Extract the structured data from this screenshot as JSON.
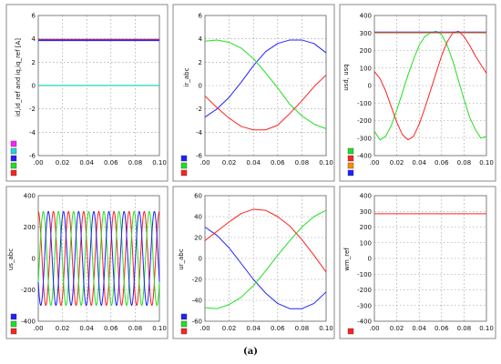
{
  "caption": "(a)",
  "colors": {
    "red": "#ff2020",
    "green": "#20e020",
    "blue": "#2020ff",
    "cyan": "#20d8d8",
    "magenta": "#ff20ff",
    "orange": "#ff8c00",
    "purple": "#7a20a0"
  },
  "chart_data": [
    {
      "type": "line",
      "ylabel": "id,id_ref and iq,iq_ref [A]",
      "xlim": [
        0,
        0.1
      ],
      "ylim": [
        -6,
        6
      ],
      "xticks": [
        ".00",
        "0.02",
        "0.04",
        "0.06",
        "0.08",
        "0.10"
      ],
      "yticks": [
        "6",
        "4",
        "2",
        "0",
        "-2",
        "-4",
        "-6"
      ],
      "grid": true,
      "legend_swatches": [
        "#ff20ff",
        "#20d8d8",
        "#2020ff",
        "#20e020",
        "#ff2020"
      ],
      "series": [
        {
          "color": "#ff2020",
          "x": [
            0,
            0.1
          ],
          "y": [
            3.9,
            3.9
          ]
        },
        {
          "color": "#2020ff",
          "x": [
            0,
            0.1
          ],
          "y": [
            3.85,
            3.85
          ]
        },
        {
          "color": "#7a20a0",
          "x": [
            0,
            0.1
          ],
          "y": [
            3.95,
            3.95
          ]
        },
        {
          "color": "#20e020",
          "x": [
            0,
            0.1
          ],
          "y": [
            0.0,
            0.0
          ]
        },
        {
          "color": "#20d8d8",
          "x": [
            0,
            0.1
          ],
          "y": [
            0.02,
            0.02
          ]
        }
      ]
    },
    {
      "type": "line",
      "ylabel": "ir_abc",
      "xlim": [
        0,
        0.1
      ],
      "ylim": [
        -6,
        6
      ],
      "xticks": [
        ".00",
        "0.02",
        "0.04",
        "0.06",
        "0.08",
        "0.10"
      ],
      "yticks": [
        "6",
        "4",
        "2",
        "0",
        "-2",
        "-4",
        "-6"
      ],
      "grid": true,
      "legend_swatches": [
        "#2020ff",
        "#20e020",
        "#ff2020"
      ],
      "series": [
        {
          "color": "#2020ff",
          "x": [
            0,
            0.01,
            0.02,
            0.03,
            0.04,
            0.05,
            0.06,
            0.07,
            0.08,
            0.09,
            0.1
          ],
          "y": [
            -2.7,
            -2.0,
            -1.0,
            0.3,
            1.7,
            2.9,
            3.6,
            3.9,
            3.9,
            3.6,
            2.8
          ]
        },
        {
          "color": "#20e020",
          "x": [
            0,
            0.01,
            0.02,
            0.03,
            0.04,
            0.05,
            0.06,
            0.07,
            0.08,
            0.09,
            0.1
          ],
          "y": [
            3.8,
            3.9,
            3.7,
            3.2,
            2.3,
            1.1,
            -0.2,
            -1.6,
            -2.6,
            -3.3,
            -3.7
          ]
        },
        {
          "color": "#ff2020",
          "x": [
            0,
            0.01,
            0.02,
            0.03,
            0.04,
            0.05,
            0.06,
            0.07,
            0.08,
            0.09,
            0.1
          ],
          "y": [
            -0.9,
            -1.9,
            -2.8,
            -3.5,
            -3.8,
            -3.8,
            -3.4,
            -2.4,
            -1.3,
            -0.1,
            0.9
          ]
        }
      ]
    },
    {
      "type": "line",
      "ylabel": "usd, usq",
      "xlim": [
        0,
        0.1
      ],
      "ylim": [
        -400,
        400
      ],
      "xticks": [
        ".00",
        "0.02",
        "0.04",
        "0.06",
        "0.08",
        "0.10"
      ],
      "yticks": [
        "400",
        "300",
        "200",
        "100",
        "0",
        "-100",
        "-200",
        "-300",
        "-400"
      ],
      "grid": true,
      "legend_swatches": [
        "#20e020",
        "#ff2020",
        "#ff8c00",
        "#2020ff"
      ],
      "series": [
        {
          "color": "#20e020",
          "x": [
            0,
            0.005,
            0.01,
            0.015,
            0.02,
            0.025,
            0.03,
            0.035,
            0.04,
            0.045,
            0.05,
            0.055,
            0.06,
            0.065,
            0.07,
            0.075,
            0.08,
            0.085,
            0.09,
            0.095,
            0.1
          ],
          "y": [
            -260,
            -310,
            -290,
            -230,
            -140,
            -40,
            60,
            150,
            230,
            280,
            300,
            310,
            290,
            230,
            140,
            30,
            -80,
            -180,
            -250,
            -300,
            -290
          ]
        },
        {
          "color": "#ff2020",
          "x": [
            0,
            0.005,
            0.01,
            0.015,
            0.02,
            0.025,
            0.03,
            0.035,
            0.04,
            0.045,
            0.05,
            0.055,
            0.06,
            0.065,
            0.07,
            0.075,
            0.08,
            0.085,
            0.09,
            0.095,
            0.1
          ],
          "y": [
            80,
            40,
            -30,
            -120,
            -210,
            -280,
            -310,
            -290,
            -220,
            -130,
            -30,
            70,
            170,
            250,
            300,
            310,
            280,
            230,
            170,
            120,
            70
          ]
        },
        {
          "color": "#2020ff",
          "x": [
            0,
            0.1
          ],
          "y": [
            305,
            305
          ]
        },
        {
          "color": "#ff8c00",
          "x": [
            0,
            0.1
          ],
          "y": [
            300,
            300
          ]
        }
      ]
    },
    {
      "type": "line",
      "ylabel": "us_abc",
      "xlim": [
        0,
        0.1
      ],
      "ylim": [
        -400,
        400
      ],
      "xticks": [
        ".00",
        "0.02",
        "0.04",
        "0.06",
        "0.08",
        "0.10"
      ],
      "yticks": [
        "400",
        "200",
        "0",
        "-200",
        "-400"
      ],
      "grid": true,
      "legend_swatches": [
        "#2020ff",
        "#20e020",
        "#ff2020"
      ],
      "wave": {
        "amplitude": 300,
        "period": 0.0125,
        "points": 201
      },
      "series": [
        {
          "color": "#ff2020",
          "phase_deg": 90
        },
        {
          "color": "#20e020",
          "phase_deg": -30
        },
        {
          "color": "#2020ff",
          "phase_deg": 210
        }
      ]
    },
    {
      "type": "line",
      "ylabel": "ur_abc",
      "xlim": [
        0,
        0.1
      ],
      "ylim": [
        -60,
        60
      ],
      "xticks": [
        ".00",
        "0.02",
        "0.04",
        "0.06",
        "0.08",
        "0.10"
      ],
      "yticks": [
        "60",
        "40",
        "20",
        "0",
        "-20",
        "-40",
        "-60"
      ],
      "grid": true,
      "legend_swatches": [
        "#2020ff",
        "#20e020",
        "#ff2020"
      ],
      "series": [
        {
          "color": "#2020ff",
          "x": [
            0,
            0.01,
            0.02,
            0.03,
            0.04,
            0.05,
            0.06,
            0.07,
            0.08,
            0.09,
            0.1
          ],
          "y": [
            30,
            22,
            10,
            -5,
            -20,
            -33,
            -43,
            -48,
            -48,
            -43,
            -32
          ]
        },
        {
          "color": "#20e020",
          "x": [
            0,
            0.01,
            0.02,
            0.03,
            0.04,
            0.05,
            0.06,
            0.07,
            0.08,
            0.09,
            0.1
          ],
          "y": [
            -47,
            -48,
            -44,
            -37,
            -26,
            -12,
            3,
            17,
            30,
            40,
            46
          ]
        },
        {
          "color": "#ff2020",
          "x": [
            0,
            0.01,
            0.02,
            0.03,
            0.04,
            0.05,
            0.06,
            0.07,
            0.08,
            0.09,
            0.1
          ],
          "y": [
            17,
            26,
            35,
            43,
            47,
            46,
            40,
            31,
            18,
            3,
            -13
          ]
        }
      ]
    },
    {
      "type": "line",
      "ylabel": "wm_ref",
      "xlim": [
        0,
        0.1
      ],
      "ylim": [
        -400,
        400
      ],
      "xticks": [
        ".00",
        "0.02",
        "0.04",
        "0.06",
        "0.08",
        "0.10"
      ],
      "yticks": [
        "400",
        "300",
        "200",
        "100",
        "0",
        "-100",
        "-200",
        "-300",
        "-400"
      ],
      "grid": true,
      "legend_swatches": [
        "#ff2020"
      ],
      "series": [
        {
          "color": "#ff2020",
          "x": [
            0,
            0.1
          ],
          "y": [
            285,
            285
          ]
        }
      ]
    }
  ]
}
